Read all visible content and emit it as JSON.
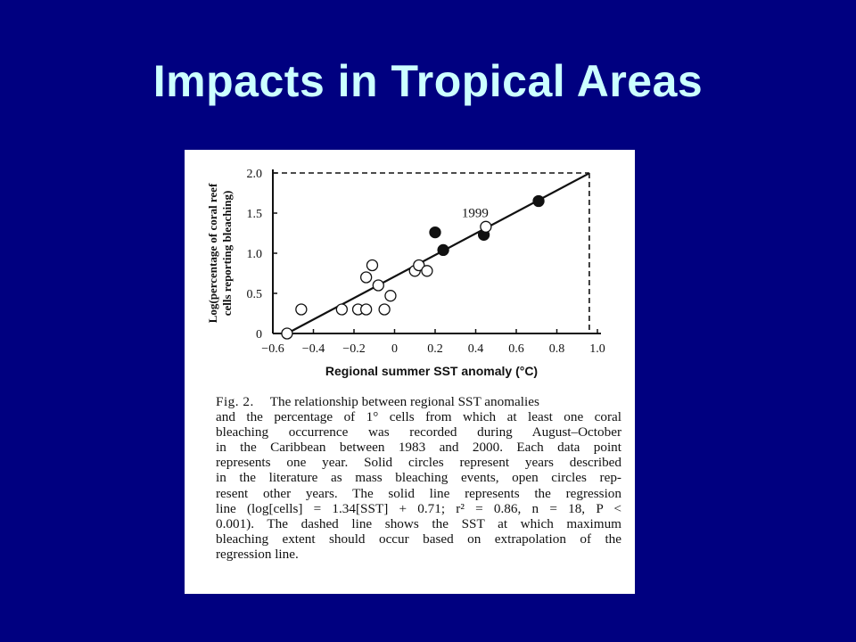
{
  "slide": {
    "title": "Impacts in Tropical Areas"
  },
  "chart_data": {
    "type": "scatter",
    "xlabel": "Regional summer SST anomaly (°C)",
    "ylabel_line1": "Log(percentage of coral reef",
    "ylabel_line2": "cells reporting bleaching)",
    "xlim": [
      -0.6,
      1.0
    ],
    "ylim": [
      0,
      2.0
    ],
    "x_ticks": [
      -0.6,
      -0.4,
      -0.2,
      0,
      0.2,
      0.4,
      0.6,
      0.8,
      1.0
    ],
    "x_tick_labels": [
      "−0.6",
      "−0.4",
      "−0.2",
      "0",
      "0.2",
      "0.4",
      "0.6",
      "0.8",
      "1.0"
    ],
    "y_ticks": [
      0,
      0.5,
      1.0,
      1.5,
      2.0
    ],
    "y_tick_labels": [
      "0",
      "0.5",
      "1.0",
      "1.5",
      "2.0"
    ],
    "annotation": {
      "text": "1999",
      "x": 0.45,
      "y": 1.33
    },
    "regression": {
      "slope": 1.34,
      "intercept": 0.71,
      "x_start": -0.53,
      "x_end": 0.96
    },
    "dashed_guide": {
      "x": 0.96,
      "y": 2.0
    },
    "series": [
      {
        "name": "Solid circles",
        "filled": true,
        "points": [
          [
            0.2,
            1.26
          ],
          [
            0.24,
            1.04
          ],
          [
            0.44,
            1.23
          ],
          [
            0.71,
            1.65
          ]
        ]
      },
      {
        "name": "Open circles",
        "filled": false,
        "points": [
          [
            -0.53,
            0.0
          ],
          [
            -0.46,
            0.3
          ],
          [
            -0.26,
            0.3
          ],
          [
            -0.18,
            0.3
          ],
          [
            -0.14,
            0.3
          ],
          [
            -0.14,
            0.7
          ],
          [
            -0.11,
            0.85
          ],
          [
            -0.08,
            0.6
          ],
          [
            -0.05,
            0.3
          ],
          [
            -0.02,
            0.47
          ],
          [
            0.1,
            0.78
          ],
          [
            0.12,
            0.85
          ],
          [
            0.16,
            0.78
          ],
          [
            0.45,
            1.33
          ]
        ]
      }
    ]
  },
  "caption": {
    "label": "Fig. 2.",
    "lines": [
      "The relationship between regional SST anomalies",
      "and the percentage of 1° cells from which at least one coral",
      "bleaching occurrence was recorded during August–October",
      "in the Caribbean between 1983 and 2000. Each data point",
      "represents one year. Solid circles represent years described",
      "in the literature as mass bleaching events, open circles rep-",
      "resent other years. The solid line represents the regression",
      "line (log[cells] = 1.34[SST] + 0.71; r² = 0.86, n = 18, P <",
      "0.001). The dashed line shows the SST at which maximum",
      "bleaching extent should occur based on extrapolation of the",
      "regression line."
    ]
  }
}
